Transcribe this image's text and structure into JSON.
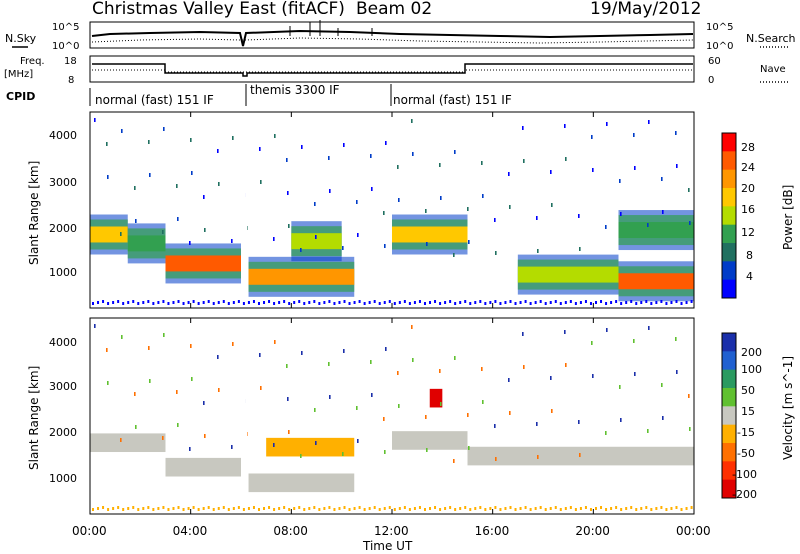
{
  "header": {
    "title": "Christmas Valley East (fitACF)",
    "beam": "Beam 02",
    "date": "19/May/2012"
  },
  "noise_panel": {
    "left_label": "N.Sky",
    "left_ticks": [
      "10^5",
      "10^0"
    ],
    "right_label": "N.Search",
    "right_ticks": [
      "10^5",
      "10^0"
    ]
  },
  "freq_panel": {
    "left_label_1": "Freq.",
    "left_label_2": "[MHz]",
    "left_ticks": [
      "18",
      "8"
    ],
    "right_label": "Nave",
    "right_ticks": [
      "60",
      "0"
    ]
  },
  "cpid": {
    "label": "CPID",
    "segments": [
      {
        "label": "normal (fast) 151 IF",
        "start_hour": 0
      },
      {
        "label": "themis 3300 IF",
        "start_hour": 6.1
      },
      {
        "label": "normal (fast) 151 IF",
        "start_hour": 11.9
      }
    ]
  },
  "power_panel": {
    "ylabel": "Slant Range [km]",
    "yticks": [
      "4000",
      "3000",
      "2000",
      "1000"
    ],
    "colorbar_label": "Power [dB]",
    "colorbar_ticks": [
      "28",
      "24",
      "20",
      "16",
      "12",
      "8",
      "4"
    ],
    "colorbar_colors": [
      "#ff0000",
      "#ff5a00",
      "#ff9600",
      "#ffc800",
      "#b4dc00",
      "#32a050",
      "#207060",
      "#003cc8",
      "#0000ff"
    ]
  },
  "velocity_panel": {
    "ylabel": "Slant Range [km]",
    "yticks": [
      "4000",
      "3000",
      "2000",
      "1000"
    ],
    "colorbar_label": "Velocity [m s^-1]",
    "colorbar_ticks": [
      "200",
      "100",
      "50",
      "15",
      "-15",
      "-50",
      "-100",
      "-200"
    ],
    "colorbar_colors": [
      "#1a2faa",
      "#2060d0",
      "#2a9a60",
      "#60c030",
      "#c8c8c0",
      "#ffb000",
      "#ff7000",
      "#ff3000",
      "#e00000"
    ]
  },
  "xaxis": {
    "label": "Time UT",
    "ticks": [
      "00:00",
      "04:00",
      "08:00",
      "12:00",
      "16:00",
      "20:00",
      "00:00"
    ]
  },
  "chart_data": [
    {
      "type": "heatmap",
      "title": "Power",
      "xlabel": "Time UT",
      "ylabel": "Slant Range [km]",
      "xlim": [
        0,
        24
      ],
      "ylim": [
        200,
        4600
      ],
      "colorbar_label": "Power [dB]",
      "colorbar_range": [
        0,
        30
      ],
      "echo_bands": [
        {
          "t_start": 0,
          "t_end": 1.5,
          "range_km": 1850,
          "power_db": 20
        },
        {
          "t_start": 1.5,
          "t_end": 3.0,
          "range_km": 1650,
          "power_db": 12
        },
        {
          "t_start": 3.0,
          "t_end": 6.0,
          "range_km": 1200,
          "power_db": 26
        },
        {
          "t_start": 6.3,
          "t_end": 10.5,
          "range_km": 900,
          "power_db": 22
        },
        {
          "t_start": 8.0,
          "t_end": 10.0,
          "range_km": 1700,
          "power_db": 14
        },
        {
          "t_start": 12.0,
          "t_end": 15.0,
          "range_km": 1850,
          "power_db": 18
        },
        {
          "t_start": 17.0,
          "t_end": 21.0,
          "range_km": 950,
          "power_db": 14
        },
        {
          "t_start": 21.0,
          "t_end": 24.0,
          "range_km": 800,
          "power_db": 26
        },
        {
          "t_start": 21.0,
          "t_end": 24.0,
          "range_km": 1950,
          "power_db": 12
        }
      ]
    },
    {
      "type": "heatmap",
      "title": "Velocity",
      "xlabel": "Time UT",
      "ylabel": "Slant Range [km]",
      "xlim": [
        0,
        24
      ],
      "ylim": [
        200,
        4600
      ],
      "colorbar_label": "Velocity [m s^-1]",
      "colorbar_range": [
        -200,
        200
      ],
      "echo_bands": [
        {
          "t_start": 0,
          "t_end": 3.0,
          "range_km": 1800,
          "velocity": 0
        },
        {
          "t_start": 3.0,
          "t_end": 6.0,
          "range_km": 1250,
          "velocity": 0
        },
        {
          "t_start": 6.3,
          "t_end": 10.5,
          "range_km": 900,
          "velocity": 0
        },
        {
          "t_start": 7.0,
          "t_end": 10.5,
          "range_km": 1700,
          "velocity": -40
        },
        {
          "t_start": 12.0,
          "t_end": 15.0,
          "range_km": 1850,
          "velocity": 0
        },
        {
          "t_start": 15.0,
          "t_end": 24.0,
          "range_km": 1500,
          "velocity": 0
        },
        {
          "t_start": 13.5,
          "t_end": 14.0,
          "range_km": 2800,
          "velocity": -200
        }
      ]
    }
  ]
}
